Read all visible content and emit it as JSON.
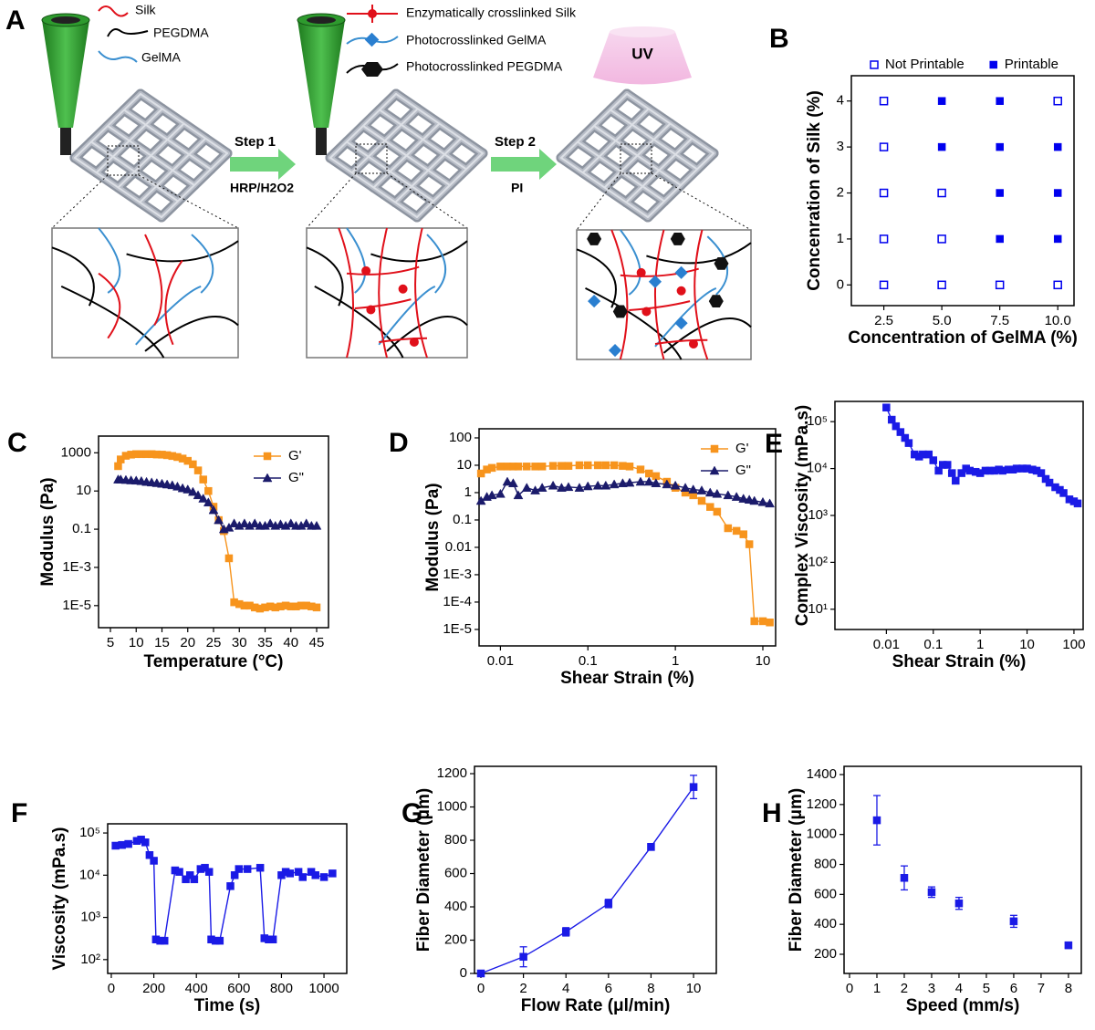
{
  "diagram": {
    "panel": "A",
    "legend_left": [
      "Silk",
      "PEGDMA",
      "GelMA"
    ],
    "legend_right": [
      "Enzymatically crosslinked Silk",
      "Photocrosslinked GelMA",
      "Photocrosslinked PEGDMA"
    ],
    "uv": "UV",
    "step1": {
      "label": "Step  1",
      "agent": "HRP/H2O2"
    },
    "step2": {
      "label": "Step  2",
      "agent": "PI"
    }
  },
  "chart_data": [
    {
      "type": "scatter",
      "panel": "B",
      "xlabel": "Concentration of GelMA (%)",
      "ylabel": "Concenration of Silk (%)",
      "xlim": [
        1.1,
        10.7
      ],
      "ylim": [
        -0.45,
        4.55
      ],
      "xticks": [
        2.5,
        {
          "value": 5,
          "label": "5.0"
        },
        7.5,
        {
          "value": 10,
          "label": "10.0"
        }
      ],
      "yticks": [
        0,
        1,
        2,
        3,
        4
      ],
      "legend": "top",
      "series": [
        {
          "name": "Not Printable",
          "color": "#0000ee",
          "marker": "square",
          "filled": false,
          "x": [
            2.5,
            2.5,
            2.5,
            2.5,
            2.5,
            5,
            5,
            5,
            7.5,
            10,
            10
          ],
          "values": [
            0,
            1,
            2,
            3,
            4,
            0,
            1,
            2,
            0,
            0,
            4
          ]
        },
        {
          "name": "Printable",
          "color": "#0000ee",
          "marker": "square",
          "filled": true,
          "x": [
            5,
            5,
            7.5,
            7.5,
            7.5,
            7.5,
            10,
            10,
            10
          ],
          "values": [
            3,
            4,
            1,
            2,
            3,
            4,
            1,
            2,
            3
          ]
        }
      ]
    },
    {
      "type": "line",
      "panel": "C",
      "xlabel": "Temperature (°C)",
      "ylabel": "Modulus (Pa)",
      "xlim": [
        2.7,
        47.3
      ],
      "ylim": [
        7e-07,
        7500
      ],
      "yscale": "log",
      "xticks": [
        5,
        10,
        15,
        20,
        25,
        30,
        35,
        40,
        45
      ],
      "yticks": [
        1000,
        10,
        0.1,
        {
          "value": 0.001,
          "label": "1E-3"
        },
        {
          "value": 1e-05,
          "label": "1E-5"
        }
      ],
      "legend": "top-right",
      "series": [
        {
          "name": "G'",
          "color": "#f7941d",
          "marker": "square",
          "filled": true,
          "x": [
            6.5,
            7,
            8,
            9,
            10,
            11,
            12,
            13,
            14,
            15,
            16,
            17,
            18,
            19,
            20,
            21,
            22,
            23,
            24,
            25,
            26,
            27,
            28,
            29,
            30,
            31,
            32,
            33,
            34,
            35,
            36,
            37,
            38,
            39,
            40,
            41,
            42,
            43,
            44,
            45
          ],
          "values": [
            200,
            450,
            700,
            800,
            850,
            850,
            850,
            850,
            820,
            800,
            750,
            680,
            600,
            500,
            380,
            250,
            120,
            40,
            10,
            1.5,
            0.3,
            0.08,
            0.003,
            1.5e-05,
            1.2e-05,
            1e-05,
            1e-05,
            8e-06,
            7e-06,
            8e-06,
            9e-06,
            8e-06,
            9e-06,
            1e-05,
            9e-06,
            9e-06,
            1e-05,
            1e-05,
            9e-06,
            8e-06
          ]
        },
        {
          "name": "G\"",
          "color": "#1b1b6b",
          "marker": "triangle",
          "filled": true,
          "x": [
            6.5,
            7,
            8,
            9,
            10,
            11,
            12,
            13,
            14,
            15,
            16,
            17,
            18,
            19,
            20,
            21,
            22,
            23,
            24,
            25,
            26,
            27,
            28,
            29,
            30,
            31,
            32,
            33,
            34,
            35,
            36,
            37,
            38,
            39,
            40,
            41,
            42,
            43,
            44,
            45
          ],
          "values": [
            40,
            40,
            38,
            36,
            35,
            33,
            30,
            28,
            26,
            24,
            22,
            20,
            17,
            14,
            12,
            9,
            6,
            4,
            2.5,
            1,
            0.3,
            0.1,
            0.12,
            0.2,
            0.15,
            0.2,
            0.15,
            0.2,
            0.15,
            0.15,
            0.2,
            0.15,
            0.18,
            0.15,
            0.2,
            0.15,
            0.15,
            0.2,
            0.15,
            0.15
          ]
        }
      ]
    },
    {
      "type": "line",
      "panel": "D",
      "xlabel": "Shear Strain (%)",
      "ylabel": "Modulus (Pa)",
      "xlim": [
        0.0057,
        14
      ],
      "ylim": [
        2.5e-06,
        215
      ],
      "xscale": "log",
      "yscale": "log",
      "xticks": [
        0.01,
        0.1,
        1,
        10
      ],
      "yticks": [
        100,
        10,
        1,
        0.1,
        0.01,
        {
          "value": 0.001,
          "label": "1E-3"
        },
        {
          "value": 0.0001,
          "label": "1E-4"
        },
        {
          "value": 1e-05,
          "label": "1E-5"
        }
      ],
      "legend": "top-right",
      "series": [
        {
          "name": "G'",
          "color": "#f7941d",
          "marker": "square",
          "filled": true,
          "x": [
            0.006,
            0.007,
            0.008,
            0.01,
            0.012,
            0.014,
            0.016,
            0.02,
            0.025,
            0.03,
            0.04,
            0.05,
            0.06,
            0.08,
            0.1,
            0.13,
            0.16,
            0.2,
            0.25,
            0.3,
            0.4,
            0.5,
            0.6,
            0.8,
            1,
            1.3,
            1.6,
            2,
            2.5,
            3,
            4,
            5,
            6,
            7,
            8,
            10,
            12
          ],
          "values": [
            5,
            7,
            8,
            9,
            9,
            9,
            9,
            9,
            9,
            9,
            9.5,
            9.5,
            9.5,
            10,
            10,
            10,
            10,
            10,
            9.5,
            9,
            7,
            5,
            4,
            2.5,
            1.5,
            1,
            0.8,
            0.5,
            0.3,
            0.2,
            0.05,
            0.04,
            0.03,
            0.013,
            2e-05,
            2e-05,
            1.8e-05
          ]
        },
        {
          "name": "G\"",
          "color": "#1b1b6b",
          "marker": "triangle",
          "filled": true,
          "x": [
            0.006,
            0.007,
            0.008,
            0.01,
            0.012,
            0.014,
            0.016,
            0.02,
            0.025,
            0.03,
            0.04,
            0.05,
            0.06,
            0.08,
            0.1,
            0.13,
            0.16,
            0.2,
            0.25,
            0.3,
            0.4,
            0.5,
            0.6,
            0.8,
            1,
            1.3,
            1.6,
            2,
            2.5,
            3,
            4,
            5,
            6,
            7,
            8,
            10,
            12
          ],
          "values": [
            0.5,
            0.7,
            0.8,
            0.9,
            2.5,
            2.2,
            0.8,
            1.5,
            1.2,
            1.5,
            1.8,
            1.5,
            1.6,
            1.5,
            1.7,
            1.8,
            1.8,
            2,
            2.2,
            2.3,
            2.5,
            2.5,
            2.2,
            2,
            1.8,
            1.5,
            1.3,
            1.2,
            1,
            0.9,
            0.8,
            0.7,
            0.6,
            0.55,
            0.5,
            0.45,
            0.4
          ]
        }
      ]
    },
    {
      "type": "line",
      "panel": "E",
      "xlabel": "Shear Strain (%)",
      "ylabel": "Complex Viscosity (mPa.s)",
      "xlim": [
        0.0008,
        157
      ],
      "ylim": [
        3.7,
        270000
      ],
      "xscale": "log",
      "yscale": "log",
      "xticks": [
        0.01,
        0.1,
        1,
        10,
        100
      ],
      "yticks": [
        {
          "value": 100000,
          "label": "10⁵"
        },
        {
          "value": 10000,
          "label": "10⁴"
        },
        {
          "value": 1000,
          "label": "10³"
        },
        {
          "value": 100,
          "label": "10²"
        },
        {
          "value": 10,
          "label": "10¹"
        }
      ],
      "series": [
        {
          "color": "#1a1ae6",
          "marker": "square",
          "filled": true,
          "x": [
            0.01,
            0.013,
            0.016,
            0.02,
            0.025,
            0.03,
            0.04,
            0.05,
            0.06,
            0.08,
            0.1,
            0.13,
            0.16,
            0.2,
            0.25,
            0.3,
            0.4,
            0.5,
            0.6,
            0.8,
            1,
            1.3,
            1.6,
            2,
            2.5,
            3,
            4,
            5,
            6,
            8,
            10,
            13,
            16,
            20,
            25,
            30,
            40,
            50,
            60,
            80,
            100,
            120
          ],
          "values": [
            200000,
            110000,
            80000,
            60000,
            45000,
            35000,
            20000,
            18000,
            20000,
            20000,
            15000,
            9000,
            12000,
            12000,
            8000,
            5500,
            8000,
            10000,
            9000,
            8500,
            8000,
            9000,
            9000,
            9000,
            9500,
            9000,
            9500,
            9500,
            10000,
            10000,
            10000,
            9500,
            9000,
            8000,
            6000,
            5000,
            4000,
            3500,
            3000,
            2200,
            2000,
            1800
          ]
        }
      ]
    },
    {
      "type": "line",
      "panel": "F",
      "xlabel": "Time (s)",
      "ylabel": "Viscosity (mPa.s)",
      "xlim": [
        -17,
        1107
      ],
      "ylim": [
        47,
        165000
      ],
      "yscale": "log",
      "xticks": [
        0,
        200,
        400,
        600,
        800,
        1000
      ],
      "yticks": [
        {
          "value": 100000,
          "label": "10⁵"
        },
        {
          "value": 10000,
          "label": "10⁴"
        },
        {
          "value": 1000,
          "label": "10³"
        },
        {
          "value": 100,
          "label": "10²"
        }
      ],
      "series": [
        {
          "color": "#1a1ae6",
          "marker": "square",
          "filled": true,
          "x": [
            20,
            50,
            80,
            120,
            140,
            160,
            180,
            200,
            210,
            230,
            250,
            300,
            320,
            350,
            370,
            390,
            420,
            440,
            460,
            470,
            490,
            510,
            560,
            580,
            600,
            640,
            700,
            720,
            740,
            760,
            800,
            820,
            840,
            880,
            900,
            940,
            960,
            1000,
            1040
          ],
          "values": [
            50000,
            52000,
            55000,
            65000,
            70000,
            60000,
            30000,
            22000,
            300,
            280,
            280,
            13000,
            12000,
            8000,
            10000,
            8000,
            14000,
            15000,
            12000,
            300,
            280,
            280,
            5500,
            10000,
            14000,
            14000,
            15000,
            320,
            300,
            300,
            10000,
            12000,
            11000,
            12000,
            9000,
            12000,
            10000,
            9000,
            11000
          ]
        }
      ]
    },
    {
      "type": "line",
      "panel": "G",
      "xlabel": "Flow Rate (μl/min)",
      "ylabel": "Fiber Diameter (μm)",
      "xlim": [
        -0.3,
        11.07
      ],
      "ylim": [
        0,
        1244
      ],
      "xticks": [
        0,
        2,
        4,
        6,
        8,
        10
      ],
      "yticks": [
        0,
        200,
        400,
        600,
        800,
        1000,
        1200
      ],
      "series": [
        {
          "color": "#1a1ae6",
          "marker": "square",
          "filled": true,
          "x": [
            0,
            2,
            4,
            6,
            8,
            10
          ],
          "values": [
            0,
            100,
            250,
            420,
            760,
            1120
          ],
          "errors": [
            0,
            60,
            25,
            25,
            20,
            70
          ]
        }
      ]
    },
    {
      "type": "scatter",
      "panel": "H",
      "xlabel": "Speed (mm/s)",
      "ylabel": "Fiber Diameter (μm)",
      "xlim": [
        -0.2,
        8.47
      ],
      "ylim": [
        72,
        1455
      ],
      "xticks": [
        0,
        1,
        2,
        3,
        4,
        5,
        6,
        7,
        8
      ],
      "yticks": [
        200,
        400,
        600,
        800,
        1000,
        1200,
        1400
      ],
      "series": [
        {
          "color": "#1a1ae6",
          "marker": "square",
          "filled": true,
          "x": [
            1,
            2,
            3,
            4,
            6,
            8
          ],
          "values": [
            1095,
            710,
            615,
            540,
            420,
            260
          ],
          "errors": [
            165,
            80,
            35,
            40,
            40,
            15
          ]
        }
      ]
    }
  ]
}
